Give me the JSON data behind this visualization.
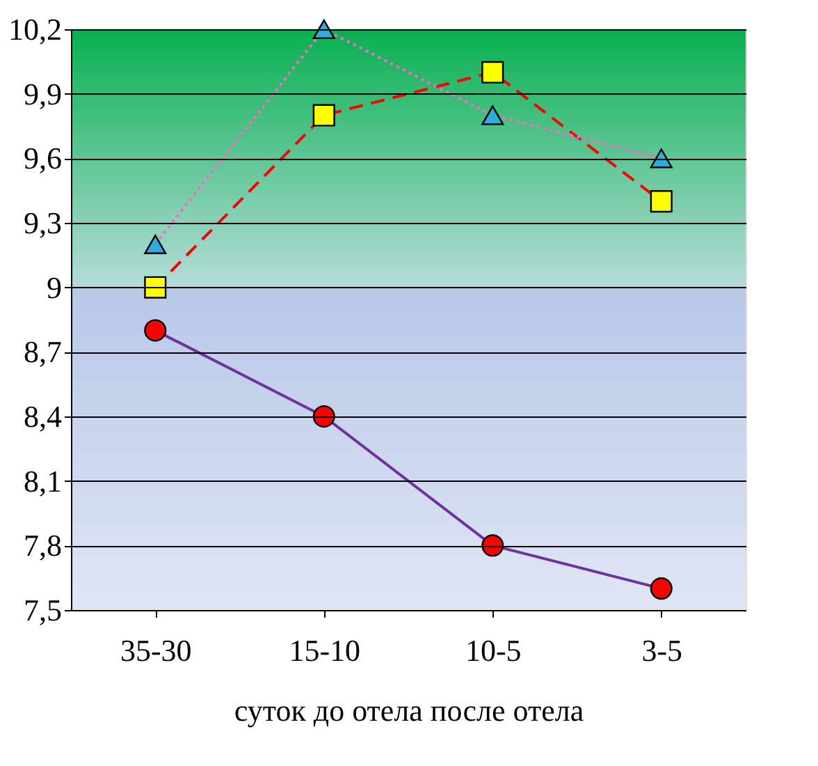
{
  "chart_data": {
    "type": "line",
    "xlabel": "суток  до  отела          после отела",
    "categories": [
      "35-30",
      "15-10",
      "10-5",
      "3-5"
    ],
    "ylim": [
      7.5,
      10.2
    ],
    "yticks": [
      {
        "value": 7.5,
        "label": "7,5"
      },
      {
        "value": 7.8,
        "label": "7,8"
      },
      {
        "value": 8.1,
        "label": "8,1"
      },
      {
        "value": 8.4,
        "label": "8,4"
      },
      {
        "value": 8.7,
        "label": "8,7"
      },
      9,
      {
        "value": 9.3,
        "label": "9,3"
      },
      {
        "value": 9.6,
        "label": "9,6"
      },
      {
        "value": 9.9,
        "label": "9,9"
      },
      {
        "value": 10.2,
        "label": "10,2"
      }
    ],
    "grid": "y",
    "series": [
      {
        "color": "#7030a0",
        "colors": [
          "#ff0000",
          "#ff0000",
          "#ff0000",
          "#ff0000"
        ],
        "marker": "circle",
        "line_style": "solid",
        "values": [
          8.8,
          8.4,
          7.8,
          7.6
        ]
      },
      {
        "color": "#ff0000",
        "colors": [
          "#ffff00",
          "#ffff00",
          "#ffff00",
          "#ffff00"
        ],
        "marker": "square",
        "line_style": "dashed",
        "values": [
          9.0,
          9.8,
          10.0,
          9.4
        ]
      },
      {
        "color": "#ff66cc",
        "colors": [
          "#33aadd",
          "#33aadd",
          "#33aadd",
          "#33aadd"
        ],
        "marker": "triangle",
        "line_style": "dotted",
        "values": [
          9.2,
          10.2,
          9.8,
          9.6
        ]
      }
    ]
  }
}
